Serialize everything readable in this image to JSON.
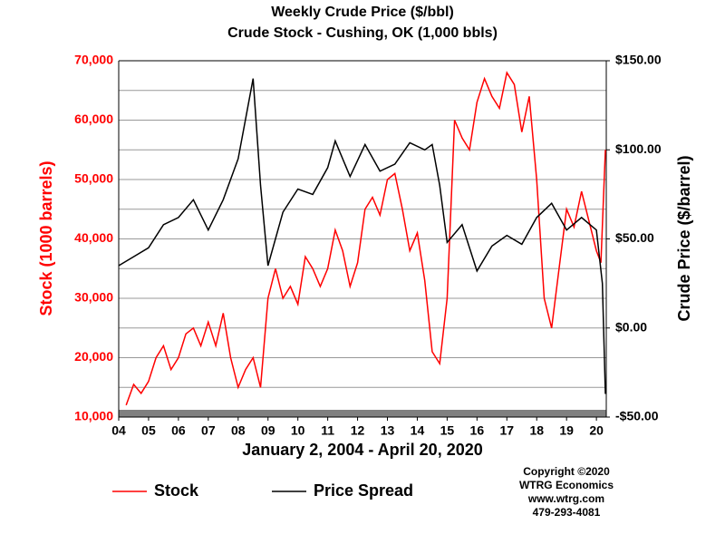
{
  "chart_data": {
    "type": "line",
    "title": "Weekly Crude Price ($/bbl)",
    "subtitle": "Crude Stock - Cushing, OK (1,000 bbls)",
    "xlabel": "January 2, 2004 - April 20, 2020",
    "ylabel": "Stock (1000 barrels)",
    "y2label": "Crude Price ($/barrel)",
    "xlim": [
      2004,
      2020.33
    ],
    "xticks": [
      {
        "value": 2004,
        "label": "04"
      },
      {
        "value": 2005,
        "label": "05"
      },
      {
        "value": 2006,
        "label": "06"
      },
      {
        "value": 2007,
        "label": "07"
      },
      {
        "value": 2008,
        "label": "08"
      },
      {
        "value": 2009,
        "label": "09"
      },
      {
        "value": 2010,
        "label": "10"
      },
      {
        "value": 2011,
        "label": "11"
      },
      {
        "value": 2012,
        "label": "12"
      },
      {
        "value": 2013,
        "label": "13"
      },
      {
        "value": 2014,
        "label": "14"
      },
      {
        "value": 2015,
        "label": "15"
      },
      {
        "value": 2016,
        "label": "16"
      },
      {
        "value": 2017,
        "label": "17"
      },
      {
        "value": 2018,
        "label": "18"
      },
      {
        "value": 2019,
        "label": "19"
      },
      {
        "value": 2020,
        "label": "20"
      }
    ],
    "ylim": [
      10000,
      70000
    ],
    "yticks": [
      {
        "value": 10000,
        "label": "10,000"
      },
      {
        "value": 20000,
        "label": "20,000"
      },
      {
        "value": 30000,
        "label": "30,000"
      },
      {
        "value": 40000,
        "label": "40,000"
      },
      {
        "value": 50000,
        "label": "50,000"
      },
      {
        "value": 60000,
        "label": "60,000"
      },
      {
        "value": 70000,
        "label": "70,000"
      }
    ],
    "minor_yticks": [
      15000,
      25000,
      35000,
      45000,
      55000,
      65000
    ],
    "y2lim": [
      -50,
      150
    ],
    "y2ticks": [
      {
        "value": -50,
        "label": "-$50.00"
      },
      {
        "value": 0,
        "label": "$0.00"
      },
      {
        "value": 50,
        "label": "$50.00"
      },
      {
        "value": 100,
        "label": "$100.00"
      },
      {
        "value": 150,
        "label": "$150.00"
      }
    ],
    "grid": true,
    "legend": "bottom",
    "series": [
      {
        "name": "Stock",
        "color": "#ff0000",
        "x": [
          2004.25,
          2004.5,
          2004.75,
          2005.0,
          2005.25,
          2005.5,
          2005.75,
          2006.0,
          2006.25,
          2006.5,
          2006.75,
          2007.0,
          2007.25,
          2007.5,
          2007.75,
          2008.0,
          2008.25,
          2008.5,
          2008.75,
          2009.0,
          2009.25,
          2009.5,
          2009.75,
          2010.0,
          2010.25,
          2010.5,
          2010.75,
          2011.0,
          2011.25,
          2011.5,
          2011.75,
          2012.0,
          2012.25,
          2012.5,
          2012.75,
          2013.0,
          2013.25,
          2013.5,
          2013.75,
          2014.0,
          2014.25,
          2014.5,
          2014.75,
          2015.0,
          2015.25,
          2015.5,
          2015.75,
          2016.0,
          2016.25,
          2016.5,
          2016.75,
          2017.0,
          2017.25,
          2017.5,
          2017.75,
          2018.0,
          2018.25,
          2018.5,
          2018.75,
          2019.0,
          2019.25,
          2019.5,
          2019.75,
          2020.0,
          2020.15,
          2020.3
        ],
        "values": [
          12000,
          15500,
          14000,
          16000,
          20000,
          22000,
          18000,
          20000,
          24000,
          25000,
          22000,
          26000,
          22000,
          27500,
          20000,
          15000,
          18000,
          20000,
          15000,
          30000,
          35000,
          30000,
          32000,
          29000,
          37000,
          35000,
          32000,
          35000,
          41500,
          38000,
          32000,
          36000,
          45000,
          47000,
          44000,
          50000,
          51000,
          45000,
          38000,
          41000,
          33000,
          21000,
          19000,
          30000,
          60000,
          57000,
          55000,
          63000,
          67000,
          64000,
          62000,
          68000,
          66000,
          58000,
          64000,
          50000,
          30000,
          25000,
          35000,
          45000,
          42000,
          48000,
          43000,
          38000,
          36000,
          55000
        ]
      },
      {
        "name": "Price Spread",
        "color": "#000000",
        "axis": "y2",
        "x": [
          2004.0,
          2004.5,
          2005.0,
          2005.5,
          2006.0,
          2006.5,
          2007.0,
          2007.5,
          2008.0,
          2008.5,
          2008.75,
          2009.0,
          2009.5,
          2010.0,
          2010.5,
          2011.0,
          2011.25,
          2011.75,
          2012.25,
          2012.75,
          2013.25,
          2013.75,
          2014.25,
          2014.5,
          2014.75,
          2015.0,
          2015.5,
          2016.0,
          2016.5,
          2017.0,
          2017.5,
          2018.0,
          2018.5,
          2019.0,
          2019.5,
          2020.0,
          2020.2,
          2020.3
        ],
        "values": [
          35,
          40,
          45,
          58,
          62,
          72,
          55,
          72,
          95,
          140,
          80,
          35,
          65,
          78,
          75,
          90,
          105,
          85,
          103,
          88,
          92,
          104,
          100,
          103,
          80,
          48,
          58,
          32,
          46,
          52,
          47,
          62,
          70,
          55,
          62,
          55,
          25,
          -37
        ]
      }
    ],
    "copyright": [
      "Copyright  ©2020",
      "WTRG Economics",
      "www.wtrg.com",
      "479-293-4081"
    ]
  }
}
